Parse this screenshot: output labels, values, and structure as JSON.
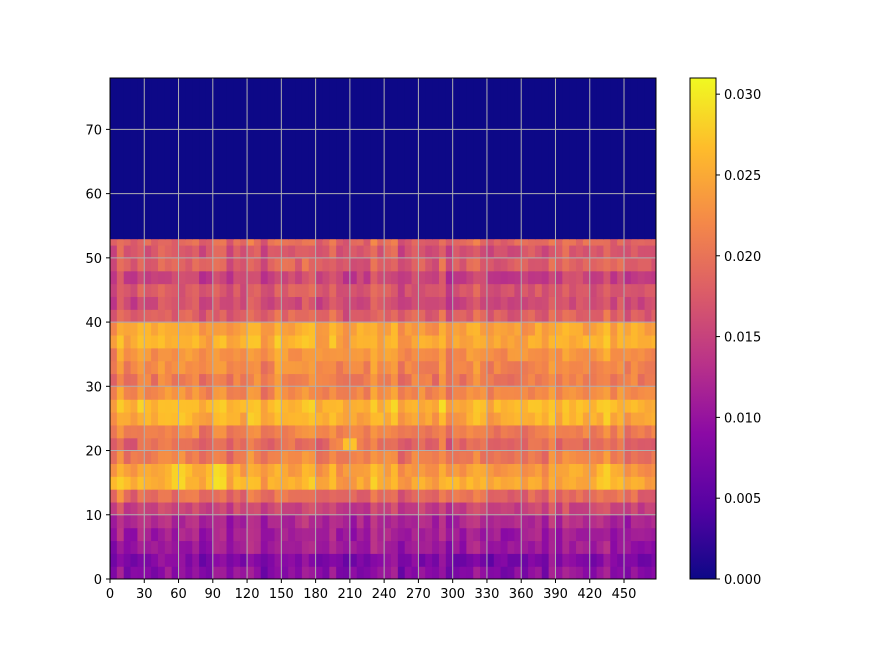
{
  "chart_data": {
    "type": "heatmap",
    "colormap": "plasma",
    "grid": true,
    "grid_color": "#b0b0b0",
    "xlim": [
      0,
      478
    ],
    "ylim": [
      0,
      78
    ],
    "x_ticks": [
      "0",
      "30",
      "60",
      "90",
      "120",
      "150",
      "180",
      "210",
      "240",
      "270",
      "300",
      "330",
      "360",
      "390",
      "420",
      "450"
    ],
    "y_ticks": [
      "0",
      "10",
      "20",
      "30",
      "40",
      "50",
      "60",
      "70"
    ],
    "colorbar": {
      "min": 0.0,
      "max": 0.031,
      "ticks": [
        "0.000",
        "0.005",
        "0.010",
        "0.015",
        "0.020",
        "0.025",
        "0.030"
      ]
    },
    "active_rows_max_y": 53,
    "row_band_values": [
      {
        "y0": 0,
        "y1": 2,
        "value": 0.009
      },
      {
        "y0": 2,
        "y1": 4,
        "value": 0.008
      },
      {
        "y0": 4,
        "y1": 6,
        "value": 0.0105
      },
      {
        "y0": 6,
        "y1": 8,
        "value": 0.011
      },
      {
        "y0": 8,
        "y1": 10,
        "value": 0.012
      },
      {
        "y0": 10,
        "y1": 12,
        "value": 0.015
      },
      {
        "y0": 12,
        "y1": 14,
        "value": 0.019
      },
      {
        "y0": 14,
        "y1": 16,
        "value": 0.025
      },
      {
        "y0": 16,
        "y1": 18,
        "value": 0.024
      },
      {
        "y0": 18,
        "y1": 20,
        "value": 0.021
      },
      {
        "y0": 20,
        "y1": 22,
        "value": 0.019
      },
      {
        "y0": 22,
        "y1": 24,
        "value": 0.021
      },
      {
        "y0": 24,
        "y1": 26,
        "value": 0.025
      },
      {
        "y0": 26,
        "y1": 28,
        "value": 0.026
      },
      {
        "y0": 28,
        "y1": 30,
        "value": 0.022
      },
      {
        "y0": 30,
        "y1": 32,
        "value": 0.021
      },
      {
        "y0": 32,
        "y1": 34,
        "value": 0.022
      },
      {
        "y0": 34,
        "y1": 36,
        "value": 0.023
      },
      {
        "y0": 36,
        "y1": 38,
        "value": 0.025
      },
      {
        "y0": 38,
        "y1": 40,
        "value": 0.024
      },
      {
        "y0": 40,
        "y1": 42,
        "value": 0.018
      },
      {
        "y0": 42,
        "y1": 44,
        "value": 0.016
      },
      {
        "y0": 44,
        "y1": 46,
        "value": 0.017
      },
      {
        "y0": 46,
        "y1": 48,
        "value": 0.015
      },
      {
        "y0": 48,
        "y1": 50,
        "value": 0.018
      },
      {
        "y0": 50,
        "y1": 52,
        "value": 0.017
      },
      {
        "y0": 52,
        "y1": 53,
        "value": 0.019
      },
      {
        "y0": 53,
        "y1": 78,
        "value": 0.0
      }
    ],
    "hot_spots": [
      {
        "x": 10,
        "y": 15,
        "value": 0.028
      },
      {
        "x": 60,
        "y": 16,
        "value": 0.03
      },
      {
        "x": 95,
        "y": 16,
        "value": 0.031
      },
      {
        "x": 300,
        "y": 15,
        "value": 0.027
      },
      {
        "x": 435,
        "y": 16,
        "value": 0.029
      },
      {
        "x": 60,
        "y": 26,
        "value": 0.028
      },
      {
        "x": 100,
        "y": 26,
        "value": 0.028
      },
      {
        "x": 350,
        "y": 26,
        "value": 0.027
      },
      {
        "x": 30,
        "y": 38,
        "value": 0.028
      },
      {
        "x": 220,
        "y": 38,
        "value": 0.027
      },
      {
        "x": 460,
        "y": 38,
        "value": 0.027
      },
      {
        "x": 210,
        "y": 21,
        "value": 0.028
      }
    ]
  }
}
